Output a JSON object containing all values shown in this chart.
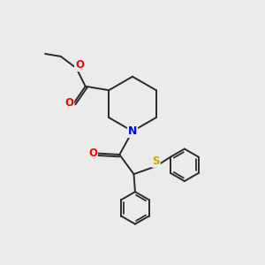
{
  "bg_color": "#ebebeb",
  "atom_colors": {
    "O": "#ff0000",
    "N": "#0000ff",
    "S": "#ccaa00",
    "C": "#2a2a2a"
  },
  "bond_color": "#2a2a2a",
  "bond_lw": 1.4
}
